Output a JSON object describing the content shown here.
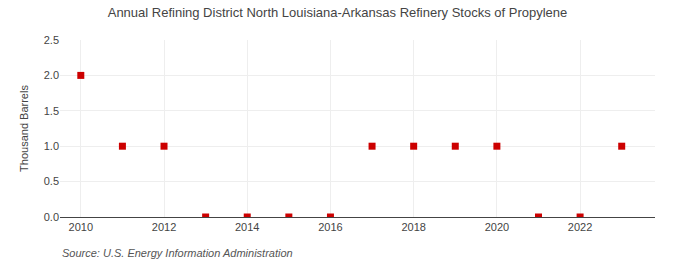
{
  "chart_data": {
    "type": "scatter",
    "title": "Annual Refining District North Louisiana-Arkansas Refinery Stocks of Propylene",
    "ylabel": "Thousand Barrels",
    "annotations": [
      "Source: U.S. Energy Information Administration"
    ],
    "x": [
      2010,
      2011,
      2012,
      2013,
      2014,
      2015,
      2016,
      2017,
      2018,
      2019,
      2020,
      2021,
      2022,
      2023
    ],
    "values": [
      2.0,
      1.0,
      1.0,
      0.0,
      0.0,
      0.0,
      0.0,
      1.0,
      1.0,
      1.0,
      1.0,
      0.0,
      0.0,
      1.0
    ],
    "color": "#cc0000",
    "marker": "square",
    "xlim": [
      2009.5,
      2023.8
    ],
    "xticks": [
      2010,
      2012,
      2014,
      2016,
      2018,
      2020,
      2022
    ],
    "ylim": [
      0.0,
      2.5
    ],
    "yticks": [
      {
        "value": 0.0,
        "label": "0.0"
      },
      0.5,
      {
        "value": 1.0,
        "label": "1.0"
      },
      1.5,
      {
        "value": 2.0,
        "label": "2.0"
      },
      2.5
    ],
    "grid": true
  }
}
